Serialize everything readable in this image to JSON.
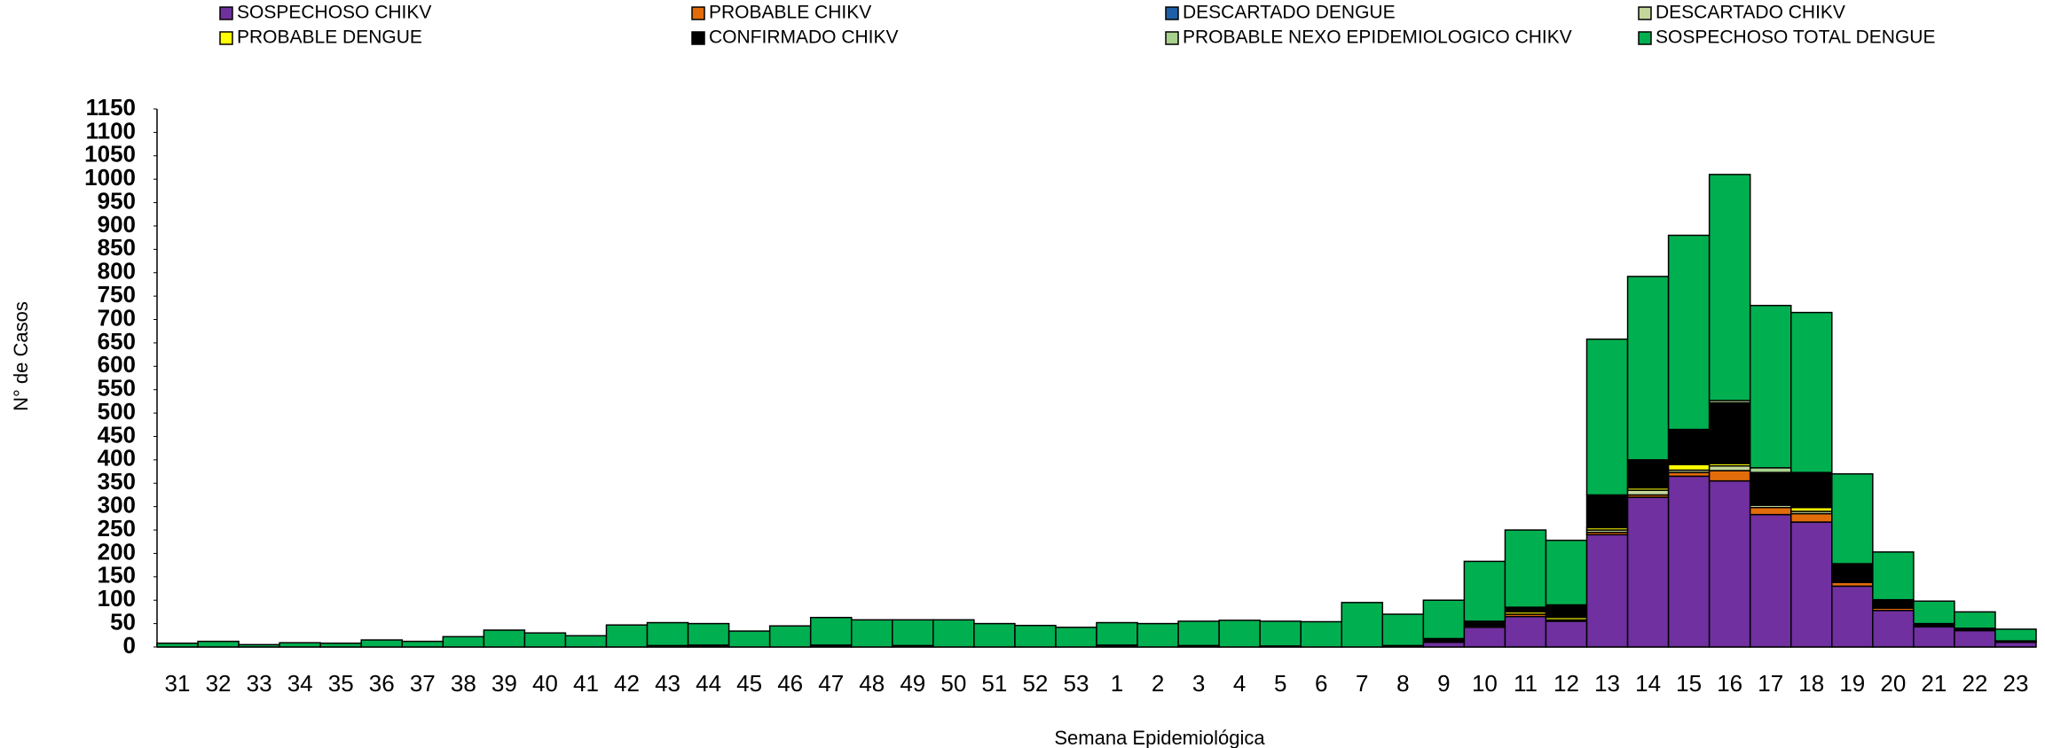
{
  "chart_data": {
    "type": "stacked_bar",
    "x_label": "Semana Epidemiológica",
    "y_label": "N° de Casos",
    "categories": [
      "31",
      "32",
      "33",
      "34",
      "35",
      "36",
      "37",
      "38",
      "39",
      "40",
      "41",
      "42",
      "43",
      "44",
      "45",
      "46",
      "47",
      "48",
      "49",
      "50",
      "51",
      "52",
      "53",
      "1",
      "2",
      "3",
      "4",
      "5",
      "6",
      "7",
      "8",
      "9",
      "10",
      "11",
      "12",
      "13",
      "14",
      "15",
      "16",
      "17",
      "18",
      "19",
      "20",
      "21",
      "22",
      "23"
    ],
    "series": [
      {
        "name": "SOSPECHOSO CHIKV",
        "color": "#7030a0",
        "values": [
          0,
          0,
          0,
          0,
          0,
          0,
          0,
          0,
          0,
          0,
          0,
          0,
          0,
          0,
          0,
          0,
          0,
          0,
          0,
          0,
          0,
          0,
          0,
          0,
          0,
          0,
          0,
          0,
          0,
          0,
          0,
          10,
          42,
          65,
          55,
          240,
          320,
          365,
          355,
          283,
          267,
          130,
          78,
          43,
          35,
          10
        ]
      },
      {
        "name": "PROBABLE CHIKV",
        "color": "#e36c0a",
        "values": [
          0,
          0,
          0,
          0,
          0,
          0,
          0,
          0,
          0,
          0,
          0,
          0,
          0,
          0,
          0,
          0,
          0,
          0,
          0,
          0,
          0,
          0,
          0,
          0,
          0,
          0,
          0,
          0,
          0,
          0,
          0,
          0,
          3,
          5,
          3,
          5,
          5,
          8,
          22,
          15,
          18,
          8,
          5,
          0,
          0,
          0
        ]
      },
      {
        "name": "DESCARTADO DENGUE",
        "color": "#1f5fa8",
        "values": [
          0,
          0,
          0,
          0,
          0,
          0,
          0,
          0,
          0,
          0,
          0,
          0,
          0,
          0,
          0,
          0,
          0,
          0,
          0,
          0,
          0,
          0,
          0,
          0,
          0,
          0,
          0,
          0,
          0,
          0,
          0,
          0,
          0,
          0,
          0,
          0,
          0,
          0,
          0,
          0,
          0,
          0,
          0,
          0,
          0,
          0
        ]
      },
      {
        "name": "DESCARTADO CHIKV",
        "color": "#c4d79b",
        "values": [
          0,
          0,
          0,
          0,
          0,
          0,
          0,
          0,
          0,
          0,
          0,
          0,
          3,
          0,
          0,
          0,
          0,
          0,
          0,
          0,
          0,
          0,
          0,
          0,
          0,
          0,
          0,
          0,
          0,
          0,
          0,
          0,
          0,
          0,
          0,
          5,
          10,
          5,
          10,
          5,
          5,
          0,
          0,
          0,
          0,
          0
        ]
      },
      {
        "name": "PROBABLE DENGUE",
        "color": "#ffff00",
        "values": [
          0,
          0,
          0,
          0,
          0,
          0,
          0,
          0,
          0,
          0,
          0,
          0,
          0,
          0,
          0,
          0,
          0,
          0,
          0,
          0,
          0,
          0,
          0,
          0,
          0,
          0,
          0,
          0,
          0,
          0,
          0,
          0,
          0,
          5,
          5,
          5,
          5,
          12,
          5,
          0,
          8,
          0,
          0,
          0,
          0,
          0
        ]
      },
      {
        "name": "CONFIRMADO CHIKV",
        "color": "#000000",
        "values": [
          0,
          0,
          0,
          0,
          0,
          0,
          0,
          0,
          0,
          0,
          0,
          0,
          0,
          4,
          0,
          0,
          4,
          0,
          3,
          0,
          0,
          0,
          0,
          4,
          0,
          3,
          0,
          2,
          0,
          0,
          3,
          8,
          10,
          10,
          27,
          70,
          60,
          75,
          130,
          70,
          75,
          40,
          18,
          7,
          5,
          3
        ]
      },
      {
        "name": "PROBABLE NEXO EPIDEMIOLOGICO CHIKV",
        "color": "#a9d18e",
        "values": [
          0,
          0,
          0,
          0,
          0,
          0,
          0,
          0,
          0,
          0,
          0,
          0,
          0,
          0,
          0,
          0,
          0,
          0,
          0,
          0,
          0,
          0,
          0,
          0,
          0,
          0,
          0,
          0,
          0,
          0,
          0,
          0,
          0,
          0,
          0,
          0,
          0,
          0,
          5,
          10,
          0,
          0,
          0,
          0,
          0,
          0
        ]
      },
      {
        "name": "SOSPECHOSO TOTAL DENGUE",
        "color": "#00b050",
        "values": [
          8,
          12,
          5,
          9,
          8,
          15,
          12,
          22,
          36,
          30,
          24,
          47,
          49,
          46,
          34,
          45,
          59,
          58,
          55,
          58,
          50,
          46,
          42,
          48,
          50,
          52,
          57,
          53,
          54,
          95,
          67,
          82,
          128,
          165,
          138,
          333,
          392,
          415,
          483,
          347,
          342,
          192,
          102,
          48,
          35,
          25
        ]
      }
    ],
    "ylim": [
      0,
      1150
    ],
    "yticks": [
      0,
      50,
      100,
      150,
      200,
      250,
      300,
      350,
      400,
      450,
      500,
      550,
      600,
      650,
      700,
      750,
      800,
      850,
      900,
      950,
      1000,
      1050,
      1100,
      1150
    ],
    "grid": false,
    "legend": "top"
  }
}
